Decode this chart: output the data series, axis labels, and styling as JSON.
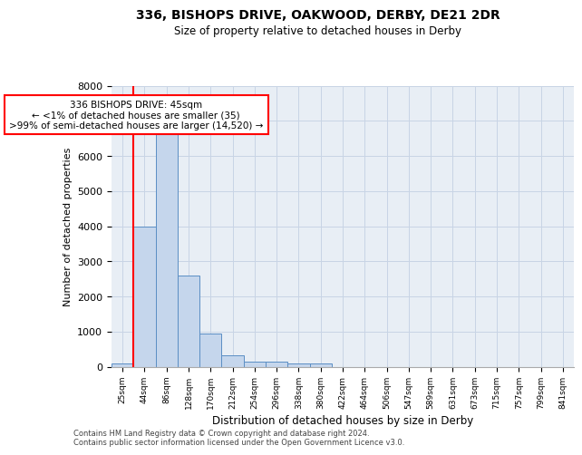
{
  "title1": "336, BISHOPS DRIVE, OAKWOOD, DERBY, DE21 2DR",
  "title2": "Size of property relative to detached houses in Derby",
  "xlabel": "Distribution of detached houses by size in Derby",
  "ylabel": "Number of detached properties",
  "categories": [
    "25sqm",
    "44sqm",
    "86sqm",
    "128sqm",
    "170sqm",
    "212sqm",
    "254sqm",
    "296sqm",
    "338sqm",
    "380sqm",
    "422sqm",
    "464sqm",
    "506sqm",
    "547sqm",
    "589sqm",
    "631sqm",
    "673sqm",
    "715sqm",
    "757sqm",
    "799sqm",
    "841sqm"
  ],
  "values": [
    80,
    4000,
    6620,
    2600,
    950,
    310,
    130,
    130,
    95,
    80,
    0,
    0,
    0,
    0,
    0,
    0,
    0,
    0,
    0,
    0,
    0
  ],
  "bar_color": "#c5d6ec",
  "bar_edge_color": "#5b8ec4",
  "grid_color": "#c8d4e5",
  "background_color": "#e8eef5",
  "ylim": [
    0,
    8000
  ],
  "yticks": [
    0,
    1000,
    2000,
    3000,
    4000,
    5000,
    6000,
    7000,
    8000
  ],
  "annotation_box_text": "336 BISHOPS DRIVE: 45sqm\n← <1% of detached houses are smaller (35)\n>99% of semi-detached houses are larger (14,520) →",
  "footer1": "Contains HM Land Registry data © Crown copyright and database right 2024.",
  "footer2": "Contains public sector information licensed under the Open Government Licence v3.0."
}
